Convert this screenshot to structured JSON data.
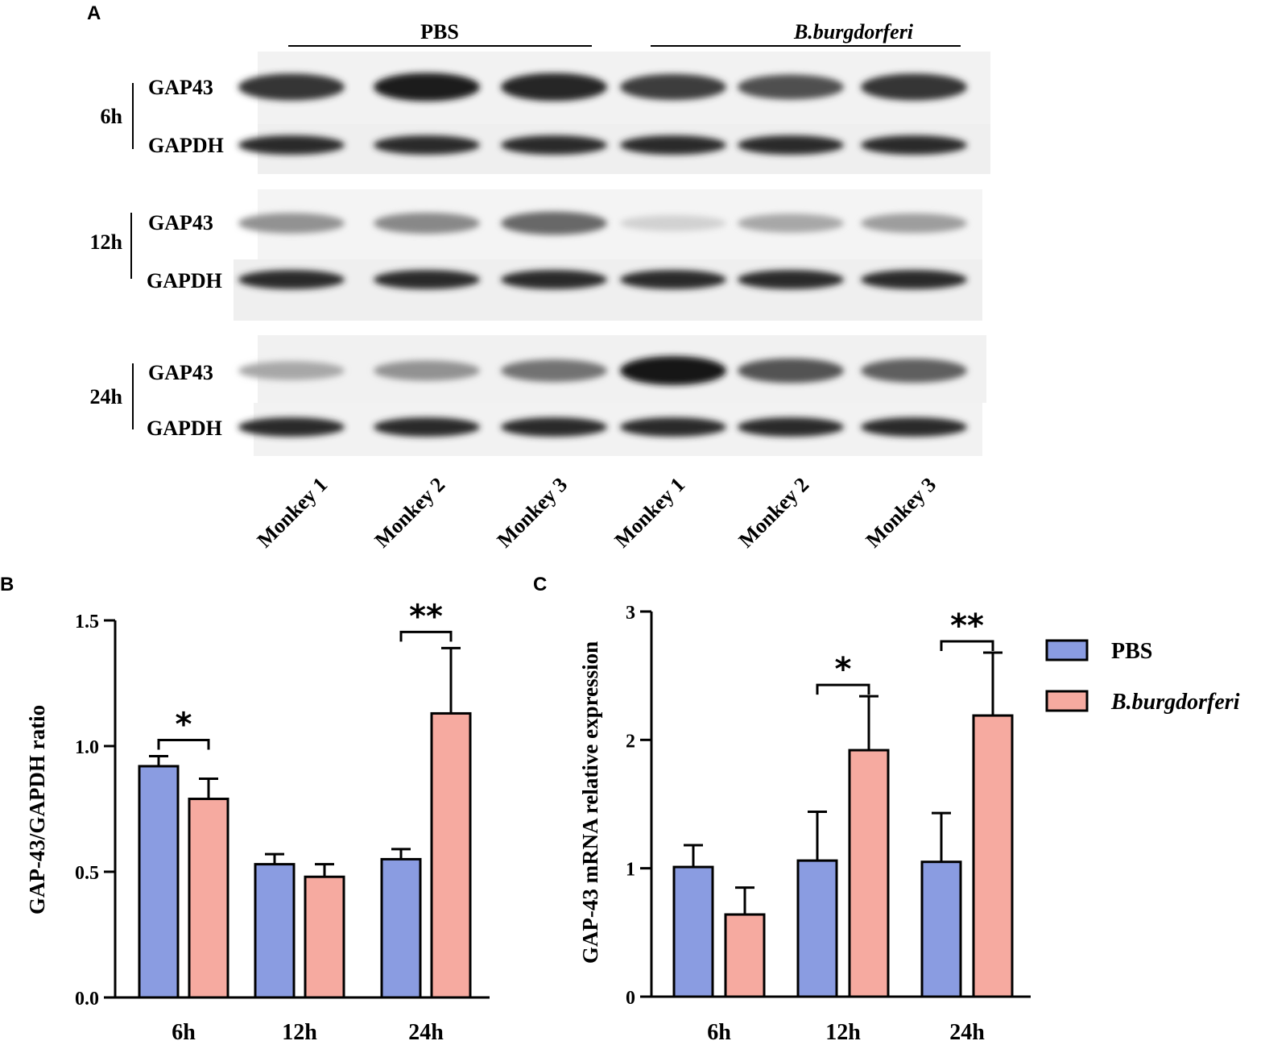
{
  "colors": {
    "pbs": "#8a9ce1",
    "bburg": "#f6aaa0",
    "axis": "#000000",
    "blot_bg": "#f3f3f3",
    "band": "#1e1e1e"
  },
  "panel_a": {
    "letter": "A",
    "groups": [
      "PBS",
      "B.burgdorferi"
    ],
    "rows": [
      {
        "time": "6h",
        "proteins": [
          "GAP43",
          "GAPDH"
        ],
        "gap43_intensity": [
          0.85,
          0.95,
          0.92,
          0.8,
          0.72,
          0.85
        ]
      },
      {
        "time": "12h",
        "proteins": [
          "GAP43",
          "GAPDH"
        ],
        "gap43_intensity": [
          0.4,
          0.45,
          0.6,
          0.1,
          0.3,
          0.35
        ]
      },
      {
        "time": "24h",
        "proteins": [
          "GAP43",
          "GAPDH"
        ],
        "gap43_intensity": [
          0.3,
          0.4,
          0.55,
          1.0,
          0.7,
          0.65
        ]
      }
    ],
    "lanes": [
      "Monkey 1",
      "Monkey 2",
      "Monkey 3",
      "Monkey 1",
      "Monkey 2",
      "Monkey 3"
    ]
  },
  "chart_data": [
    {
      "panel": "B",
      "type": "bar",
      "categories": [
        "6h",
        "12h",
        "24h"
      ],
      "ylabel": "GAP-43/GAPDH ratio",
      "ylim": [
        0,
        1.5
      ],
      "yticks": [
        "0.0",
        "0.5",
        "1.0",
        "1.5"
      ],
      "ytick_values": [
        0,
        0.5,
        1.0,
        1.5
      ],
      "series": [
        {
          "name": "PBS",
          "values": [
            0.92,
            0.53,
            0.55
          ],
          "errors": [
            0.04,
            0.04,
            0.04
          ]
        },
        {
          "name": "B.burgdorferi",
          "values": [
            0.79,
            0.48,
            1.13
          ],
          "errors": [
            0.08,
            0.05,
            0.26
          ]
        }
      ],
      "significance": [
        {
          "category": "6h",
          "label": "*"
        },
        {
          "category": "24h",
          "label": "**"
        }
      ]
    },
    {
      "panel": "C",
      "type": "bar",
      "categories": [
        "6h",
        "12h",
        "24h"
      ],
      "ylabel": "GAP-43 mRNA relative expression",
      "ylim": [
        0,
        3
      ],
      "yticks": [
        "0",
        "1",
        "2",
        "3"
      ],
      "ytick_values": [
        0,
        1,
        2,
        3
      ],
      "series": [
        {
          "name": "PBS",
          "values": [
            1.01,
            1.06,
            1.05
          ],
          "errors": [
            0.17,
            0.38,
            0.38
          ]
        },
        {
          "name": "B.burgdorferi",
          "values": [
            0.64,
            1.92,
            2.19
          ],
          "errors": [
            0.21,
            0.42,
            0.49
          ]
        }
      ],
      "significance": [
        {
          "category": "12h",
          "label": "*"
        },
        {
          "category": "24h",
          "label": "**"
        }
      ],
      "legend": {
        "placement": "right",
        "entries": [
          "PBS",
          "B.burgdorferi"
        ]
      }
    }
  ]
}
